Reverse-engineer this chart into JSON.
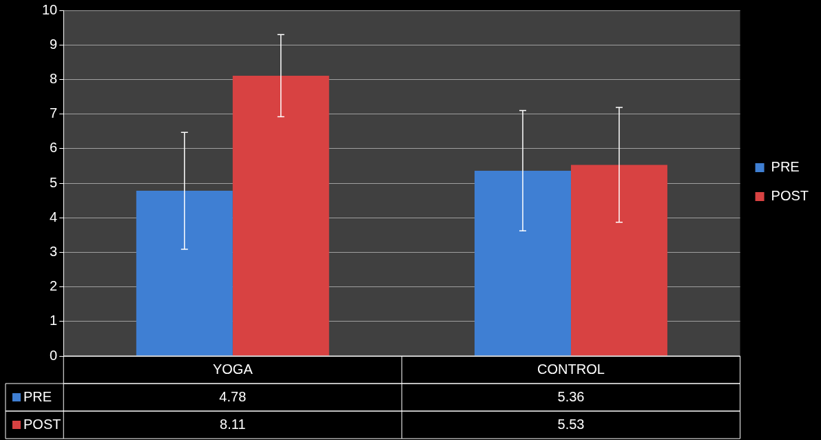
{
  "chart_data": {
    "type": "bar",
    "categories": [
      "YOGA",
      "CONTROL"
    ],
    "series": [
      {
        "name": "PRE",
        "color": "#3f7fd3",
        "values": [
          4.78,
          5.36
        ],
        "errors": [
          1.69,
          1.74
        ]
      },
      {
        "name": "POST",
        "color": "#d84242",
        "values": [
          8.11,
          5.53
        ],
        "errors": [
          1.19,
          1.66
        ]
      }
    ],
    "ylim": [
      0,
      10
    ],
    "yticks": [
      0,
      1,
      2,
      3,
      4,
      5,
      6,
      7,
      8,
      9,
      10
    ],
    "grid": "y",
    "legend": "right",
    "data_labels": true
  }
}
